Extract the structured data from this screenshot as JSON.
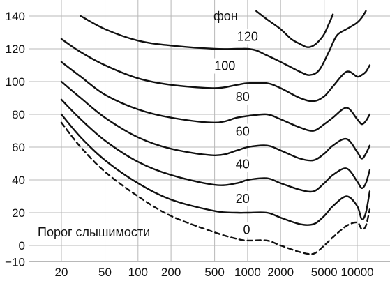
{
  "chart_data": {
    "type": "line",
    "title": "",
    "xlabel": "",
    "ylabel": "",
    "x_scale": "log",
    "xlim": [
      16,
      15000
    ],
    "ylim": [
      -10,
      140
    ],
    "grid": true,
    "x_ticks": [
      20,
      50,
      100,
      200,
      500,
      1000,
      2000,
      5000,
      10000
    ],
    "x_tick_labels": [
      "20",
      "50",
      "100",
      "200",
      "500",
      "1000",
      "2000",
      "5000",
      "10000"
    ],
    "y_ticks": [
      -10,
      0,
      20,
      40,
      60,
      80,
      100,
      120,
      140
    ],
    "y_tick_labels": [
      "−10",
      "0",
      "20",
      "40",
      "60",
      "80",
      "100",
      "120",
      "140"
    ],
    "unit_label": "фон",
    "threshold_label": "Порог слышимости",
    "series": [
      {
        "name": "0",
        "style": "dashed",
        "x": [
          20,
          30,
          50,
          100,
          200,
          500,
          800,
          1000,
          1500,
          2000,
          3000,
          4000,
          5000,
          6000,
          8000,
          10000,
          11000,
          12000,
          13000
        ],
        "y": [
          75,
          60,
          45,
          30,
          18,
          8,
          4,
          3,
          3,
          0,
          -4,
          -5,
          0,
          5,
          12,
          14,
          10,
          12,
          22
        ]
      },
      {
        "name": "20",
        "style": "solid",
        "x": [
          20,
          30,
          50,
          100,
          200,
          500,
          800,
          1000,
          1500,
          2000,
          3000,
          4000,
          5000,
          6000,
          8000,
          10000,
          11000,
          12000,
          13000
        ],
        "y": [
          80,
          66,
          52,
          38,
          28,
          21,
          20,
          20,
          20,
          17,
          13,
          13,
          18,
          24,
          30,
          24,
          16,
          20,
          33
        ]
      },
      {
        "name": "40",
        "style": "solid",
        "x": [
          20,
          30,
          50,
          100,
          200,
          500,
          800,
          1000,
          1500,
          2000,
          3000,
          4000,
          5000,
          6000,
          8000,
          10000,
          11000,
          12000,
          13000
        ],
        "y": [
          89,
          77,
          64,
          51,
          43,
          37,
          38,
          40,
          41,
          38,
          34,
          33,
          38,
          43,
          47,
          39,
          35,
          38,
          46
        ]
      },
      {
        "name": "60",
        "style": "solid",
        "x": [
          20,
          30,
          50,
          100,
          200,
          500,
          800,
          1000,
          1500,
          2000,
          3000,
          4000,
          5000,
          6000,
          8000,
          10000,
          11000,
          12000,
          13000
        ],
        "y": [
          100,
          90,
          78,
          66,
          59,
          55,
          58,
          60,
          61,
          58,
          53,
          52,
          56,
          61,
          65,
          57,
          53,
          56,
          61
        ]
      },
      {
        "name": "80",
        "style": "solid",
        "x": [
          20,
          30,
          50,
          100,
          200,
          500,
          800,
          1000,
          1500,
          2000,
          3000,
          4000,
          5000,
          6000,
          8000,
          10000,
          11000,
          12000,
          13000
        ],
        "y": [
          112,
          103,
          92,
          83,
          78,
          75,
          78,
          79,
          80,
          77,
          72,
          70,
          74,
          78,
          84,
          77,
          74,
          76,
          80
        ]
      },
      {
        "name": "100",
        "style": "solid",
        "x": [
          20,
          30,
          50,
          100,
          200,
          500,
          800,
          1000,
          1500,
          2000,
          3000,
          4000,
          5000,
          6000,
          8000,
          10000,
          11000,
          12000,
          13000
        ],
        "y": [
          126,
          118,
          110,
          102,
          98,
          96,
          98,
          99,
          99,
          96,
          90,
          88,
          91,
          97,
          106,
          103,
          104,
          106,
          110
        ]
      },
      {
        "name": "120",
        "style": "solid",
        "x": [
          30,
          50,
          100,
          200,
          500,
          800,
          1000,
          1200,
          1500,
          2000,
          3000,
          3700,
          4500,
          5500,
          6500,
          8000,
          9000,
          10000,
          11000,
          12000
        ],
        "y": [
          140,
          132,
          125,
          122,
          120,
          120,
          120,
          119,
          116,
          112,
          106,
          104,
          107,
          118,
          128,
          132,
          134,
          136,
          139,
          143
        ]
      },
      {
        "name": "",
        "style": "solid",
        "x": [
          1200,
          1500,
          2000,
          2500,
          3000,
          3500,
          4000,
          4500,
          5000,
          5500,
          6000
        ],
        "y": [
          143,
          138,
          132,
          126,
          123,
          121,
          122,
          125,
          129,
          135,
          141
        ]
      }
    ],
    "curve_labels": [
      {
        "text": "120",
        "freq": 1000,
        "level": 125
      },
      {
        "text": "100",
        "freq": 620,
        "level": 107
      },
      {
        "text": "80",
        "freq": 900,
        "level": 88
      },
      {
        "text": "60",
        "freq": 900,
        "level": 67
      },
      {
        "text": "40",
        "freq": 900,
        "level": 47
      },
      {
        "text": "20",
        "freq": 900,
        "level": 26
      },
      {
        "text": "0",
        "freq": 980,
        "level": 7
      }
    ]
  }
}
